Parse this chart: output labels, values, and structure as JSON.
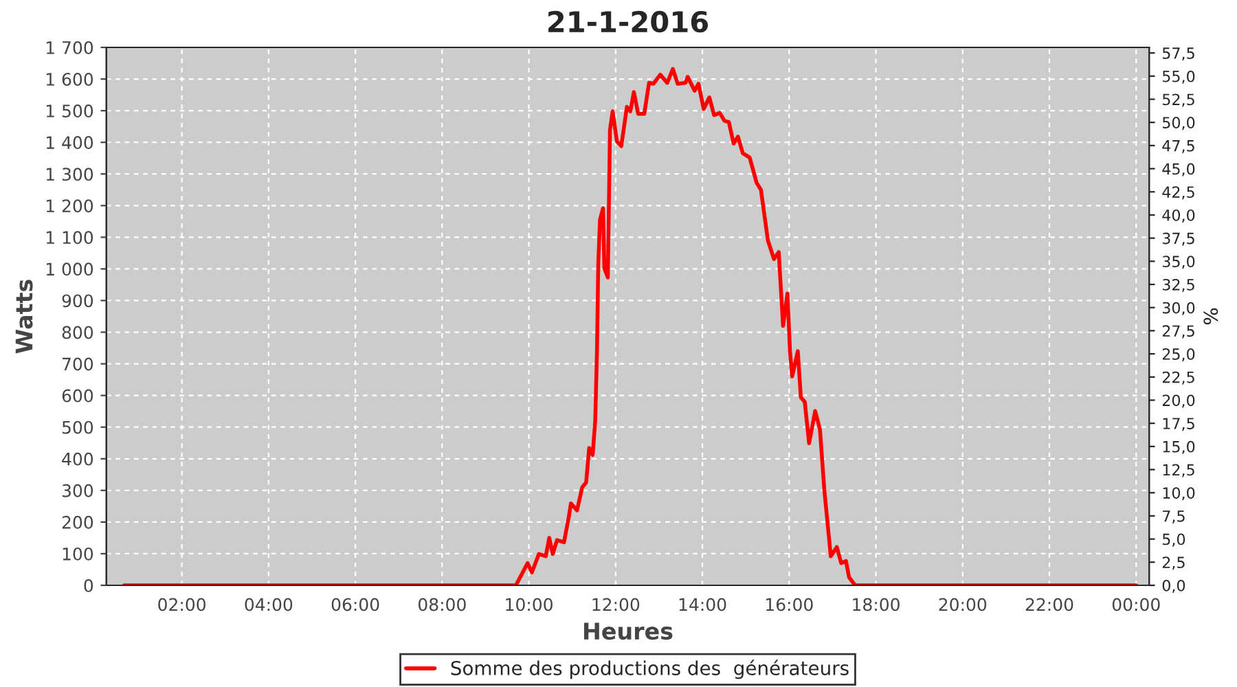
{
  "chart_data": {
    "type": "line",
    "title": "21-1-2016",
    "xlabel": "Heures",
    "ylabel": "Watts",
    "y2label": "%",
    "xlim": [
      0.26,
      24.3
    ],
    "ylim": [
      0,
      1700
    ],
    "y2lim": [
      0,
      58.1
    ],
    "xticks": [
      {
        "value": 2,
        "label": "02:00"
      },
      {
        "value": 4,
        "label": "04:00"
      },
      {
        "value": 6,
        "label": "06:00"
      },
      {
        "value": 8,
        "label": "08:00"
      },
      {
        "value": 10,
        "label": "10:00"
      },
      {
        "value": 12,
        "label": "12:00"
      },
      {
        "value": 14,
        "label": "14:00"
      },
      {
        "value": 16,
        "label": "16:00"
      },
      {
        "value": 18,
        "label": "18:00"
      },
      {
        "value": 20,
        "label": "20:00"
      },
      {
        "value": 22,
        "label": "22:00"
      },
      {
        "value": 24,
        "label": "00:00"
      }
    ],
    "yticks": [
      0,
      100,
      200,
      300,
      400,
      500,
      600,
      700,
      800,
      900,
      {
        "value": 1000,
        "label": "1 000"
      },
      {
        "value": 1100,
        "label": "1 100"
      },
      {
        "value": 1200,
        "label": "1 200"
      },
      {
        "value": 1300,
        "label": "1 300"
      },
      {
        "value": 1400,
        "label": "1 400"
      },
      {
        "value": 1500,
        "label": "1 500"
      },
      {
        "value": 1600,
        "label": "1 600"
      },
      {
        "value": 1700,
        "label": "1 700"
      }
    ],
    "y2ticks": [
      {
        "value": 0,
        "label": "0,0"
      },
      {
        "value": 2.5,
        "label": "2,5"
      },
      {
        "value": 5,
        "label": "5,0"
      },
      {
        "value": 7.5,
        "label": "7,5"
      },
      {
        "value": 10,
        "label": "10,0"
      },
      {
        "value": 12.5,
        "label": "12,5"
      },
      {
        "value": 15,
        "label": "15,0"
      },
      {
        "value": 17.5,
        "label": "17,5"
      },
      {
        "value": 20,
        "label": "20,0"
      },
      {
        "value": 22.5,
        "label": "22,5"
      },
      {
        "value": 25,
        "label": "25,0"
      },
      {
        "value": 27.5,
        "label": "27,5"
      },
      {
        "value": 30,
        "label": "30,0"
      },
      {
        "value": 32.5,
        "label": "32,5"
      },
      {
        "value": 35,
        "label": "35,0"
      },
      {
        "value": 37.5,
        "label": "37,5"
      },
      {
        "value": 40,
        "label": "40,0"
      },
      {
        "value": 42.5,
        "label": "42,5"
      },
      {
        "value": 45,
        "label": "45,0"
      },
      {
        "value": 47.5,
        "label": "47,5"
      },
      {
        "value": 50,
        "label": "50,0"
      },
      {
        "value": 52.5,
        "label": "52,5"
      },
      {
        "value": 55,
        "label": "55,0"
      },
      {
        "value": 57.5,
        "label": "57,5"
      }
    ],
    "grid": true,
    "legend": "bottom",
    "series": [
      {
        "name": "Somme des productions des  générateurs",
        "color": "#ff0000",
        "x": [
          0.67,
          9.2,
          9.7,
          9.97,
          10.07,
          10.23,
          10.39,
          10.47,
          10.55,
          10.65,
          10.81,
          10.92,
          10.97,
          11.11,
          11.23,
          11.32,
          11.39,
          11.47,
          11.53,
          11.57,
          11.6,
          11.64,
          11.71,
          11.74,
          11.82,
          11.87,
          11.93,
          12.03,
          12.13,
          12.26,
          12.34,
          12.42,
          12.52,
          12.66,
          12.77,
          12.87,
          13.03,
          13.19,
          13.32,
          13.43,
          13.61,
          13.66,
          13.82,
          13.91,
          14.03,
          14.16,
          14.27,
          14.4,
          14.51,
          14.61,
          14.72,
          14.82,
          14.93,
          15.09,
          15.25,
          15.35,
          15.51,
          15.65,
          15.76,
          15.86,
          15.96,
          16.02,
          16.07,
          16.2,
          16.27,
          16.36,
          16.46,
          16.6,
          16.71,
          16.81,
          16.96,
          17.1,
          17.2,
          17.31,
          17.38,
          17.52,
          24.0
        ],
        "values": [
          0,
          0,
          0,
          70,
          41,
          99,
          92,
          150,
          99,
          143,
          136,
          216,
          259,
          237,
          310,
          325,
          434,
          412,
          521,
          740,
          1017,
          1155,
          1192,
          1002,
          973,
          1439,
          1498,
          1403,
          1388,
          1512,
          1498,
          1559,
          1490,
          1490,
          1588,
          1585,
          1614,
          1588,
          1632,
          1585,
          1588,
          1607,
          1563,
          1585,
          1505,
          1542,
          1486,
          1493,
          1468,
          1464,
          1396,
          1418,
          1366,
          1352,
          1272,
          1250,
          1090,
          1031,
          1053,
          820,
          922,
          740,
          660,
          740,
          594,
          580,
          449,
          551,
          493,
          303,
          92,
          121,
          70,
          77,
          26,
          0,
          0
        ]
      }
    ]
  }
}
